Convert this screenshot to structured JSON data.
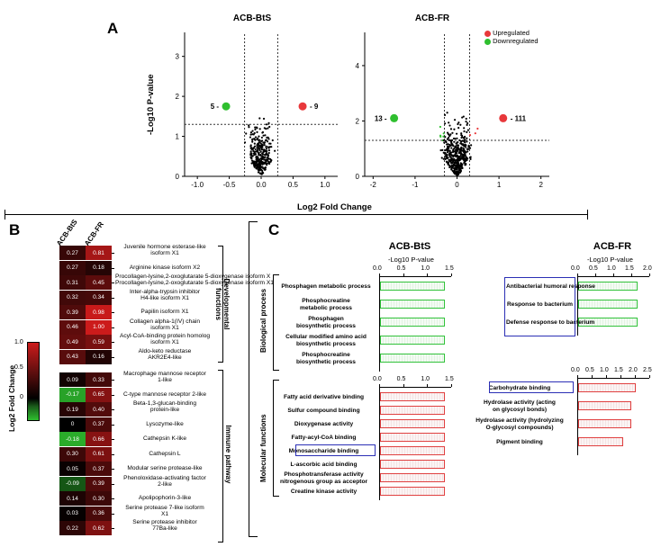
{
  "panel_a": {
    "letter": "A",
    "y_axis_label": "-Log10 P-value",
    "x_axis_label": "Log2 Fold Change",
    "legend": [
      {
        "label": "Upregulated",
        "color": "#e8383b"
      },
      {
        "label": "Downregulated",
        "color": "#2fbf2f"
      }
    ],
    "bts": {
      "title": "ACB-BtS",
      "x_ticks": [
        "-1.0",
        "-0.5",
        "0.0",
        "0.5",
        "1.0"
      ],
      "y_ticks": [
        "0",
        "1",
        "2",
        "3"
      ],
      "down_count": "5",
      "up_count": "9"
    },
    "fr": {
      "title": "ACB-FR",
      "x_ticks": [
        "-2",
        "-1",
        "0",
        "1",
        "2"
      ],
      "y_ticks": [
        "0",
        "2",
        "4"
      ],
      "down_count": "13",
      "up_count": "111"
    }
  },
  "panel_b": {
    "letter": "B",
    "col_labels": [
      "ACB-BtS",
      "ACB-FR"
    ],
    "colorbar_label": "Log2 Fold Change",
    "colorbar_ticks": [
      "1.0",
      "0.5",
      "0"
    ],
    "colors": {
      "high": "#cc1b1b",
      "mid": "#000000",
      "low": "#2fbf2f"
    },
    "group_labels": [
      "Developmental functions",
      "Immune pathway"
    ],
    "developmental": [
      {
        "gene": "Juvenile hormone esterase-like isoform X1",
        "bts": "0.27",
        "fr": "0.81",
        "bts_v": 0.27,
        "fr_v": 0.81
      },
      {
        "gene": "Arginine kinase isoform X2",
        "bts": "0.27",
        "fr": "0.18",
        "bts_v": 0.27,
        "fr_v": 0.18
      },
      {
        "gene": "Procollagen-lysine,2-oxoglutarate 5-dioxygenase isoform X1",
        "bts": "0.31",
        "fr": "0.45",
        "bts_v": 0.31,
        "fr_v": 0.45
      },
      {
        "gene": "Inter-alpha-trypsin inhibitor H4-like isoform X1",
        "bts": "0.32",
        "fr": "0.34",
        "bts_v": 0.32,
        "fr_v": 0.34
      },
      {
        "gene": "Papilin isoform X1",
        "bts": "0.39",
        "fr": "0.98",
        "bts_v": 0.39,
        "fr_v": 0.98
      },
      {
        "gene": "Collagen alpha-1(IV) chain isoform X1",
        "bts": "0.46",
        "fr": "1.00",
        "bts_v": 0.46,
        "fr_v": 1.0
      },
      {
        "gene": "Acyl-CoA-binding protein homolog isoform X1",
        "bts": "0.49",
        "fr": "0.59",
        "bts_v": 0.49,
        "fr_v": 0.59
      },
      {
        "gene": "Aldo-keto reductase AKR2E4-like",
        "bts": "0.43",
        "fr": "0.16",
        "bts_v": 0.43,
        "fr_v": 0.16
      }
    ],
    "immune": [
      {
        "gene": "Macrophage mannose receptor 1-like",
        "bts": "0.09",
        "fr": "0.33",
        "bts_v": 0.09,
        "fr_v": 0.33,
        "star": "*"
      },
      {
        "gene": "C-type mannose receptor 2-like",
        "bts": "-0.17",
        "fr": "0.65",
        "bts_v": -0.17,
        "fr_v": 0.65,
        "star": "*"
      },
      {
        "gene": "Beta-1,3-glucan-binding protein-like",
        "bts": "0.19",
        "fr": "0.40",
        "bts_v": 0.19,
        "fr_v": 0.4,
        "star": "*"
      },
      {
        "gene": "Lysozyme-like",
        "bts": "0",
        "fr": "0.37",
        "bts_v": 0,
        "fr_v": 0.37,
        "star": "*"
      },
      {
        "gene": "Cathepsin K-like",
        "bts": "-0.18",
        "fr": "0.66",
        "bts_v": -0.18,
        "fr_v": 0.66,
        "star": "*"
      },
      {
        "gene": "Cathepsin L",
        "bts": "0.30",
        "fr": "0.61",
        "bts_v": 0.3,
        "fr_v": 0.61,
        "star": ""
      },
      {
        "gene": "Modular serine protease-like",
        "bts": "0.05",
        "fr": "0.37",
        "bts_v": 0.05,
        "fr_v": 0.37,
        "star": "*"
      },
      {
        "gene": "Phenoloxidase-activating factor 2-like",
        "bts": "-0.09",
        "fr": "0.39",
        "bts_v": -0.09,
        "fr_v": 0.39,
        "star": "*"
      },
      {
        "gene": "Apolipophorin-3-like",
        "bts": "0.14",
        "fr": "0.30",
        "bts_v": 0.14,
        "fr_v": 0.3,
        "star": "*"
      },
      {
        "gene": "Serine protease 7-like isoform X1",
        "bts": "0.03",
        "fr": "0.36",
        "bts_v": 0.03,
        "fr_v": 0.36,
        "star": "*"
      },
      {
        "gene": "Serine protease inhibitor 77Ba-like",
        "bts": "0.22",
        "fr": "0.62",
        "bts_v": 0.22,
        "fr_v": 0.62,
        "star": "*"
      }
    ]
  },
  "panel_c": {
    "letter": "C",
    "axis_label": "-Log10 P-value",
    "section_labels": [
      "Biological process",
      "Molecular functions"
    ],
    "bts_title": "ACB-BtS",
    "fr_title": "ACB-FR",
    "bts_bio": {
      "ticks": [
        "0.0",
        "0.5",
        "1.0",
        "1.5"
      ],
      "max": 1.5,
      "items": [
        {
          "label": "Phosphagen metabolic process",
          "value": 1.35
        },
        {
          "label": "Phosphocreatine metabolic process",
          "value": 1.35
        },
        {
          "label": "Phosphagen biosynthetic process",
          "value": 1.35
        },
        {
          "label": "Cellular modified amino acid biosynthetic process",
          "value": 1.35
        },
        {
          "label": "Phosphocreatine biosynthetic process",
          "value": 1.35
        }
      ]
    },
    "bts_mol": {
      "ticks": [
        "0.0",
        "0.5",
        "1.0",
        "1.5"
      ],
      "max": 1.5,
      "highlight": "Monosaccharide binding",
      "items": [
        {
          "label": "Fatty acid derivative binding",
          "value": 1.35
        },
        {
          "label": "Sulfur compound binding",
          "value": 1.35
        },
        {
          "label": "Dioxygenase activity",
          "value": 1.35
        },
        {
          "label": "Fatty-acyl-CoA binding",
          "value": 1.35
        },
        {
          "label": "Monosaccharide binding",
          "value": 1.35
        },
        {
          "label": "L-ascorbic acid binding",
          "value": 1.35
        },
        {
          "label": "Phosphotransferase activity nitrogenous group as acceptor",
          "value": 1.35
        },
        {
          "label": "Creatine kinase activity",
          "value": 1.35
        }
      ]
    },
    "fr_bio": {
      "ticks": [
        "0.0",
        "0.5",
        "1.0",
        "1.5",
        "2.0"
      ],
      "max": 2.0,
      "highlight_group": "Antibacterial humoral response; Response to bacterium; Defense response to bacterium",
      "items": [
        {
          "label": "Antibacterial humoral response",
          "value": 1.65
        },
        {
          "label": "Response to bacterium",
          "value": 1.65
        },
        {
          "label": "Defense response to bacterium",
          "value": 1.65
        }
      ]
    },
    "fr_mol": {
      "ticks": [
        "0.0",
        "0.5",
        "1.0",
        "1.5",
        "2.0",
        "2.5"
      ],
      "max": 2.5,
      "highlight": "Carbohydrate binding",
      "items": [
        {
          "label": "Carbohydrate binding",
          "value": 2.0
        },
        {
          "label": "Hydrolase activity (acting on glycosyl bonds)",
          "value": 1.85
        },
        {
          "label": "Hydrolase activity (hydrolyzing O-glycosyl compounds)",
          "value": 1.85
        },
        {
          "label": "Pigment binding",
          "value": 1.55
        }
      ]
    }
  }
}
